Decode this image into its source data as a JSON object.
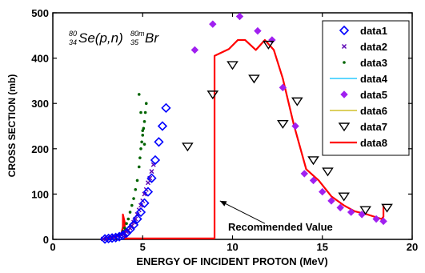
{
  "chart_data": {
    "type": "scatter",
    "reaction_label": {
      "a_top": "80",
      "a_bottom": "34",
      "symbol": "Se(p,n)",
      "b_top": "80m",
      "b_bottom": "35",
      "product": "Br"
    },
    "xlabel": "ENERGY OF INCIDENT PROTON (MeV)",
    "ylabel": "CROSS SECTION (mb)",
    "xlim": [
      0,
      20
    ],
    "ylim": [
      0,
      500
    ],
    "xticks": [
      "0",
      "5",
      "10",
      "15",
      "20"
    ],
    "yticks": [
      "0",
      "100",
      "200",
      "300",
      "400",
      "500"
    ],
    "grid": false,
    "legend_position": "top-right",
    "annotation": {
      "text": "Recommended Value",
      "arrow_to": [
        9.3,
        85
      ],
      "arrow_from": [
        11.8,
        35
      ]
    },
    "series": [
      {
        "name": "data1",
        "marker": "diamond-open",
        "color": "#0000ff",
        "x": [
          2.9,
          3.1,
          3.3,
          3.5,
          3.7,
          3.9,
          4.1,
          4.3,
          4.5,
          4.7,
          4.9,
          5.1,
          5.3,
          5.5,
          5.7,
          5.9,
          6.1,
          6.3
        ],
        "y": [
          1,
          2,
          3,
          4,
          6,
          9,
          14,
          22,
          32,
          45,
          60,
          80,
          105,
          135,
          175,
          215,
          250,
          290
        ]
      },
      {
        "name": "data2",
        "marker": "x",
        "color": "#5a00b4",
        "x": [
          2.8,
          3.0,
          3.2,
          3.4,
          3.6,
          3.8,
          3.9,
          4.0,
          4.1,
          4.2,
          4.3,
          4.4,
          4.5,
          4.6,
          4.7,
          4.8,
          4.9,
          5.0,
          5.1,
          5.2,
          5.3,
          5.4,
          5.5,
          5.6
        ],
        "y": [
          1,
          2,
          3,
          5,
          7,
          10,
          12,
          14,
          17,
          20,
          25,
          30,
          38,
          45,
          55,
          65,
          75,
          85,
          100,
          110,
          125,
          135,
          150,
          165
        ]
      },
      {
        "name": "data3",
        "marker": "dot",
        "color": "#006400",
        "x": [
          3.5,
          3.7,
          3.9,
          4.0,
          4.1,
          4.2,
          4.3,
          4.4,
          4.5,
          4.6,
          4.7,
          4.8,
          4.85,
          4.9,
          4.95,
          5.0,
          5.05,
          5.1,
          5.15,
          5.2,
          4.8,
          4.9,
          5.0,
          5.1
        ],
        "y": [
          5,
          10,
          18,
          25,
          35,
          45,
          60,
          75,
          90,
          110,
          130,
          160,
          180,
          200,
          215,
          230,
          245,
          260,
          280,
          300,
          320,
          280,
          240,
          210
        ]
      },
      {
        "name": "data4",
        "marker": "line",
        "color": "#00bfff",
        "x": [],
        "y": []
      },
      {
        "name": "data5",
        "marker": "diamond-filled",
        "color": "#a020f0",
        "x": [
          7.9,
          8.9,
          10.4,
          11.4,
          12.2,
          12.8,
          13.5,
          14.0,
          14.5,
          15.0,
          15.5,
          16.0,
          16.6,
          17.2,
          18.0,
          18.4
        ],
        "y": [
          418,
          475,
          492,
          460,
          440,
          335,
          250,
          145,
          130,
          105,
          85,
          70,
          60,
          55,
          45,
          40
        ]
      },
      {
        "name": "data6",
        "marker": "line",
        "color": "#c8b400",
        "x": [],
        "y": []
      },
      {
        "name": "data7",
        "marker": "triangle-down-open",
        "color": "#000000",
        "x": [
          7.5,
          8.9,
          10.0,
          11.2,
          12.0,
          12.8,
          13.6,
          14.5,
          15.3,
          16.2,
          17.4,
          18.6
        ],
        "y": [
          205,
          320,
          385,
          355,
          430,
          255,
          305,
          175,
          150,
          95,
          65,
          70
        ]
      },
      {
        "name": "data8",
        "marker": "line",
        "color": "#ff0000",
        "x": [
          2.8,
          3.3,
          3.8,
          3.9,
          3.9,
          4.0,
          4.0,
          9.0,
          9.0,
          9.8,
          10.3,
          10.7,
          11.3,
          11.8,
          12.3,
          12.8,
          13.4,
          14.1,
          14.8,
          15.5,
          16.2,
          16.8,
          17.5,
          18.3,
          18.4,
          18.4
        ],
        "y": [
          0,
          3,
          10,
          28,
          55,
          38,
          2,
          2,
          405,
          420,
          440,
          440,
          418,
          440,
          418,
          355,
          255,
          155,
          130,
          95,
          75,
          62,
          55,
          45,
          50,
          75
        ]
      }
    ]
  }
}
